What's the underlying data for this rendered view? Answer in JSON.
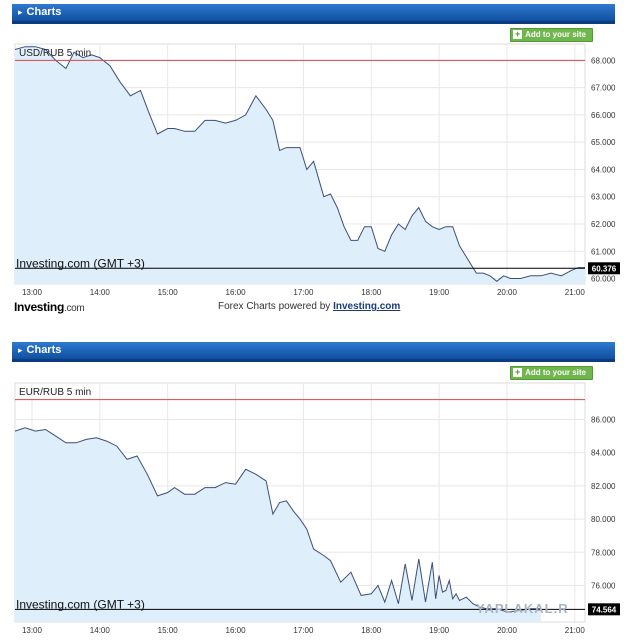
{
  "widgets": [
    {
      "header": {
        "title": "Charts",
        "add_button": "Add to your site"
      },
      "chart_label": "USD/RUB 5 min",
      "watermark": "Investing.com (GMT +3)",
      "current_price": "60.376",
      "footer": {
        "logo_brand": "Investing",
        "logo_suffix": ".com",
        "powered_text": "Forex Charts powered by",
        "powered_link": "Investing.com"
      }
    },
    {
      "header": {
        "title": "Charts",
        "add_button": "Add to your site"
      },
      "chart_label": "EUR/RUB 5 min",
      "watermark": "Investing.com (GMT +3)",
      "current_price": "74.564"
    }
  ],
  "site_watermark": "YAPLAKAL.R",
  "colors": {
    "header_blue": "#1a5fb4",
    "add_green": "#6fb64d",
    "line": "#3b4f7a",
    "fill": "#deeefb",
    "ref_red": "#d44"
  },
  "chart_data": [
    {
      "type": "area",
      "title": "USD/RUB 5 min",
      "x_ticks": [
        "13:00",
        "14:00",
        "15:00",
        "16:00",
        "17:00",
        "18:00",
        "19:00",
        "20:00",
        "21:00"
      ],
      "y_ticks": [
        "60.000",
        "61.000",
        "62.000",
        "63.000",
        "64.000",
        "65.000",
        "66.000",
        "67.000",
        "68.000"
      ],
      "ylim": [
        59.8,
        68.6
      ],
      "xlim": [
        12.75,
        21.15
      ],
      "reference_line": 68.0,
      "current_price_line": 60.376,
      "x": [
        12.75,
        12.9,
        13.05,
        13.2,
        13.35,
        13.5,
        13.62,
        13.75,
        13.88,
        14.0,
        14.15,
        14.3,
        14.45,
        14.6,
        14.72,
        14.85,
        15.0,
        15.1,
        15.25,
        15.4,
        15.55,
        15.7,
        15.85,
        16.0,
        16.15,
        16.3,
        16.45,
        16.55,
        16.65,
        16.75,
        16.85,
        16.95,
        17.05,
        17.15,
        17.3,
        17.4,
        17.5,
        17.6,
        17.7,
        17.8,
        17.9,
        18.0,
        18.1,
        18.2,
        18.3,
        18.4,
        18.5,
        18.6,
        18.7,
        18.8,
        18.9,
        19.0,
        19.1,
        19.2,
        19.3,
        19.45,
        19.55,
        19.65,
        19.75,
        19.85,
        19.95,
        20.05,
        20.2,
        20.35,
        20.5,
        20.65,
        20.8,
        20.95,
        21.05,
        21.15
      ],
      "y": [
        68.4,
        68.5,
        68.5,
        68.4,
        68.0,
        67.7,
        68.3,
        68.1,
        68.2,
        68.1,
        67.8,
        67.2,
        66.7,
        66.9,
        66.1,
        65.3,
        65.5,
        65.5,
        65.4,
        65.4,
        65.8,
        65.8,
        65.7,
        65.8,
        66.0,
        66.7,
        66.2,
        65.8,
        64.7,
        64.8,
        64.8,
        64.8,
        64.0,
        64.3,
        63.0,
        63.1,
        62.6,
        61.9,
        61.4,
        61.4,
        61.9,
        61.9,
        61.1,
        61.0,
        61.6,
        62.0,
        61.8,
        62.3,
        62.6,
        62.1,
        61.9,
        61.8,
        61.9,
        61.9,
        61.2,
        60.6,
        60.2,
        60.2,
        60.1,
        59.9,
        60.1,
        60.0,
        60.0,
        60.1,
        60.1,
        60.2,
        60.1,
        60.3,
        60.4,
        60.4
      ]
    },
    {
      "type": "area",
      "title": "EUR/RUB 5 min",
      "x_ticks": [
        "13:00",
        "14:00",
        "15:00",
        "16:00",
        "17:00",
        "18:00",
        "19:00",
        "20:00",
        "21:00"
      ],
      "y_ticks": [
        "76.000",
        "78.000",
        "80.000",
        "82.000",
        "84.000",
        "86.000"
      ],
      "ylim": [
        73.8,
        88.2
      ],
      "xlim": [
        12.75,
        21.15
      ],
      "reference_line": 87.2,
      "current_price_line": 74.564,
      "x": [
        12.75,
        12.9,
        13.05,
        13.2,
        13.35,
        13.5,
        13.65,
        13.8,
        13.95,
        14.1,
        14.25,
        14.4,
        14.55,
        14.7,
        14.85,
        15.0,
        15.1,
        15.25,
        15.4,
        15.55,
        15.7,
        15.85,
        16.0,
        16.15,
        16.3,
        16.45,
        16.55,
        16.65,
        16.75,
        16.85,
        16.95,
        17.05,
        17.15,
        17.3,
        17.4,
        17.55,
        17.7,
        17.85,
        18.0,
        18.1,
        18.2,
        18.3,
        18.4,
        18.5,
        18.6,
        18.7,
        18.8,
        18.9,
        18.95,
        19.0,
        19.05,
        19.1,
        19.15,
        19.2,
        19.25,
        19.3,
        19.4,
        19.5,
        19.6,
        19.7,
        19.85,
        20.0,
        20.2,
        20.35,
        20.5
      ],
      "y": [
        85.3,
        85.5,
        85.3,
        85.4,
        85.0,
        84.6,
        84.6,
        84.8,
        84.9,
        84.7,
        84.4,
        83.6,
        83.8,
        82.7,
        81.4,
        81.6,
        81.9,
        81.5,
        81.5,
        81.9,
        81.9,
        82.2,
        82.1,
        83.0,
        82.7,
        82.3,
        80.3,
        81.0,
        81.1,
        80.5,
        80.0,
        79.4,
        78.2,
        77.8,
        77.5,
        76.2,
        76.8,
        75.4,
        75.5,
        76.0,
        75.0,
        76.3,
        74.9,
        77.3,
        75.1,
        77.6,
        75.0,
        77.4,
        75.2,
        76.6,
        75.6,
        75.7,
        76.3,
        75.2,
        75.5,
        75.1,
        75.3,
        74.9,
        74.7,
        74.6,
        74.6,
        74.4,
        74.5,
        74.6,
        74.6
      ]
    }
  ]
}
